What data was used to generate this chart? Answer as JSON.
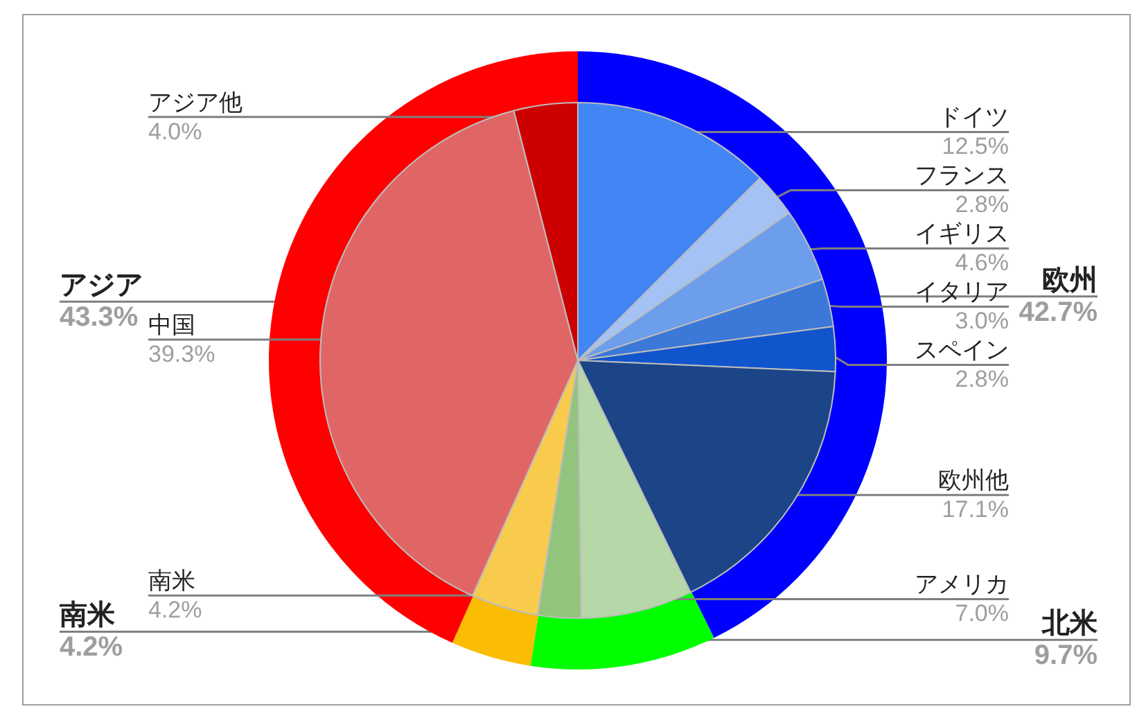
{
  "chart_data": [
    {
      "type": "pie",
      "categories": [
        "ドイツ",
        "フランス",
        "イギリス",
        "イタリア",
        "スペイン",
        "欧州他",
        "アメリカ",
        null,
        "南米",
        "中国",
        "アジア他"
      ],
      "values": [
        12.5,
        2.8,
        4.6,
        3.0,
        2.8,
        17.1,
        7.0,
        2.7,
        4.2,
        39.3,
        4.0
      ],
      "colors": [
        "#4285f4",
        "#a4c2f4",
        "#6d9eeb",
        "#3c78d8",
        "#1155cc",
        "#1c4587",
        "#b6d7a8",
        "#93c47d",
        "#f9cb4c",
        "#e06666",
        "#cc0000"
      ],
      "value_labels": [
        "12.5%",
        "2.8%",
        "4.6%",
        "3.0%",
        "2.8%",
        "17.1%",
        "7.0%",
        null,
        "4.2%",
        "39.3%",
        "4.0%"
      ]
    },
    {
      "type": "pie",
      "categories": [
        "欧州",
        "北米",
        "南米",
        "アジア"
      ],
      "values": [
        42.7,
        9.7,
        4.2,
        43.3
      ],
      "colors": [
        "#0000ff",
        "#00ff00",
        "#fbbc04",
        "#ff0000"
      ],
      "value_labels": [
        "42.7%",
        "9.7%",
        "4.2%",
        "43.3%"
      ]
    }
  ]
}
